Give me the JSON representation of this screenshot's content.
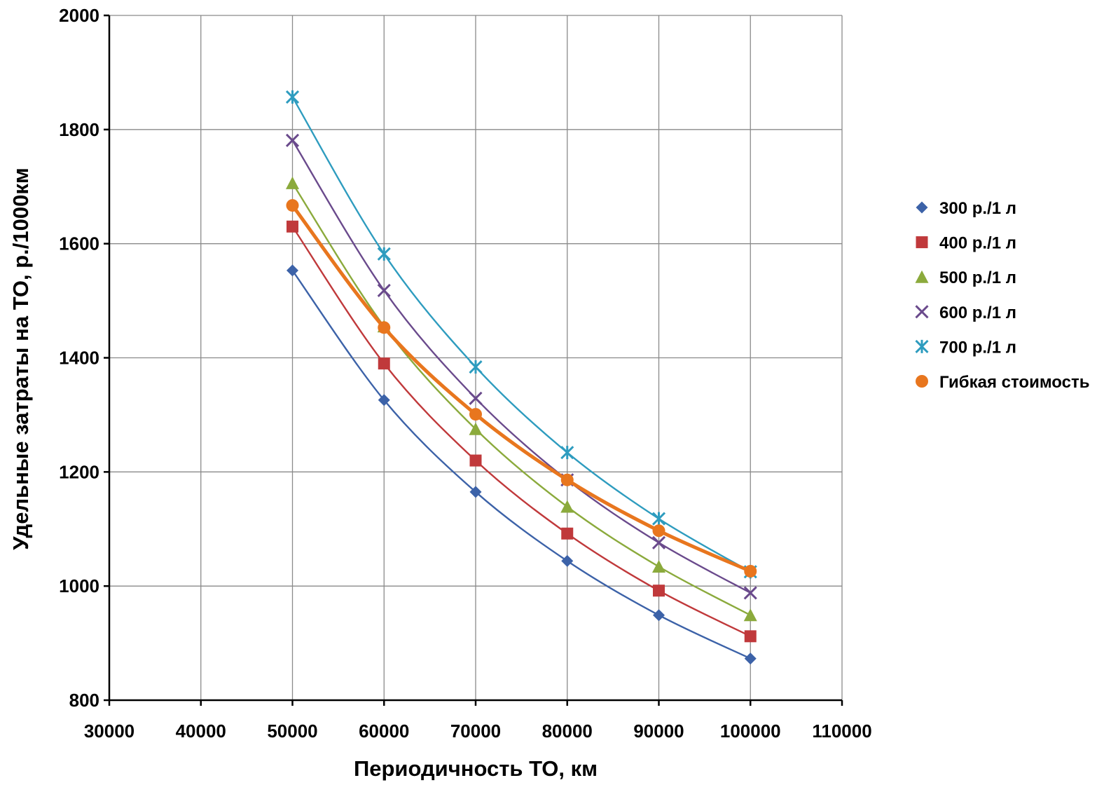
{
  "chart_data": {
    "type": "scatter",
    "title": "",
    "xlabel": "Периодичность ТО, км",
    "ylabel": "Удельные затраты на ТО, р./1000км",
    "xlim": [
      30000,
      110000
    ],
    "ylim": [
      800,
      2000
    ],
    "xticks": [
      30000,
      40000,
      50000,
      60000,
      70000,
      80000,
      90000,
      100000,
      110000
    ],
    "yticks": [
      800,
      1000,
      1200,
      1400,
      1600,
      1800,
      2000
    ],
    "grid": true,
    "legend_position": "right",
    "x": [
      50000,
      60000,
      70000,
      80000,
      90000,
      100000
    ],
    "series": [
      {
        "name": "300 р./1 л",
        "marker": "diamond",
        "color": "#3C62A8",
        "values": [
          1553,
          1326,
          1165,
          1044,
          949,
          873
        ]
      },
      {
        "name": "400 р./1 л",
        "marker": "square",
        "color": "#C0393B",
        "values": [
          1630,
          1390,
          1220,
          1092,
          992,
          912
        ]
      },
      {
        "name": "500 р./1 л",
        "marker": "triangle",
        "color": "#8BAA3C",
        "values": [
          1706,
          1455,
          1275,
          1139,
          1034,
          949
        ]
      },
      {
        "name": "600 р./1 л",
        "marker": "x",
        "color": "#6A4A8C",
        "values": [
          1781,
          1518,
          1329,
          1186,
          1076,
          988
        ]
      },
      {
        "name": "700 р./1 л",
        "marker": "star",
        "color": "#2E9CBF",
        "values": [
          1857,
          1582,
          1384,
          1234,
          1118,
          1025
        ]
      },
      {
        "name": "Гибкая стоимость",
        "marker": "circle",
        "color": "#E8761E",
        "values": [
          1667,
          1453,
          1301,
          1186,
          1097,
          1026
        ]
      }
    ]
  }
}
